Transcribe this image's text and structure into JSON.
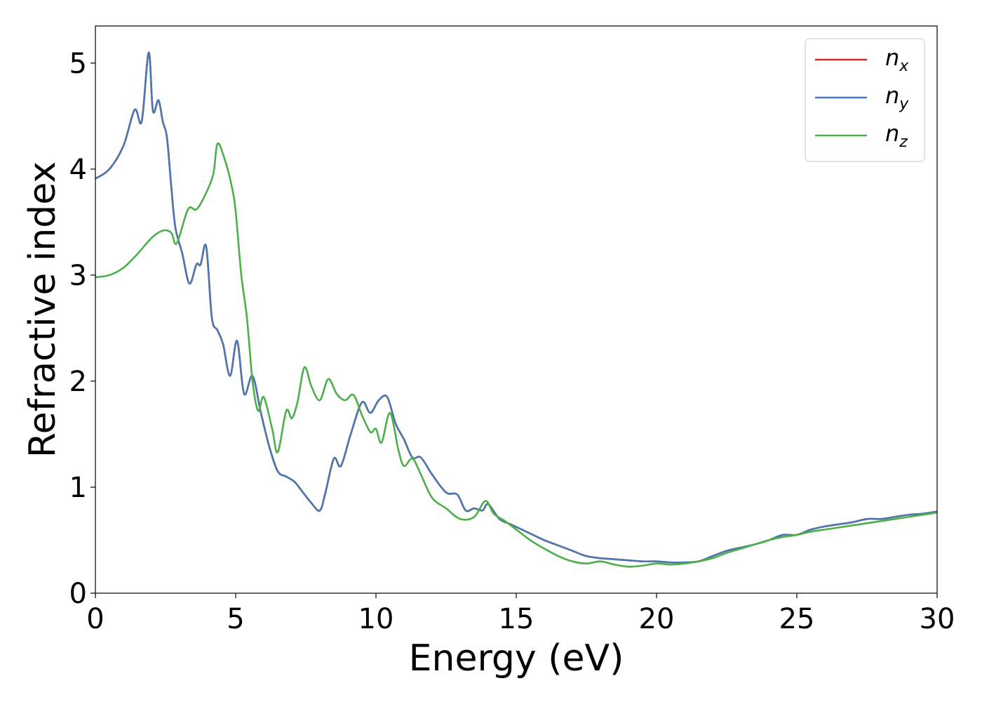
{
  "chart_data": {
    "type": "line",
    "xlabel": "Energy (eV)",
    "ylabel": "Refractive index",
    "xlim": [
      0,
      30
    ],
    "ylim": [
      0,
      5.35
    ],
    "xticks": [
      0,
      5,
      10,
      15,
      20,
      25,
      30
    ],
    "yticks": [
      0,
      1,
      2,
      3,
      4,
      5
    ],
    "grid": false,
    "legend_position": "top-right",
    "series": [
      {
        "name": "n_x",
        "label_base": "n",
        "label_sub": "x",
        "color": "#d62728",
        "x": [
          0,
          0.5,
          1,
          1.4,
          1.65,
          1.9,
          2.05,
          2.25,
          2.4,
          2.55,
          2.7,
          2.85,
          3.1,
          3.35,
          3.6,
          3.75,
          3.95,
          4.15,
          4.35,
          4.55,
          4.8,
          5.05,
          5.3,
          5.6,
          5.9,
          6.2,
          6.5,
          6.8,
          7.1,
          7.4,
          7.7,
          8.0,
          8.2,
          8.5,
          8.75,
          9.1,
          9.5,
          9.8,
          10.1,
          10.4,
          10.7,
          11.0,
          11.3,
          11.6,
          12.0,
          12.5,
          12.9,
          13.2,
          13.5,
          13.8,
          14.0,
          14.4,
          14.8,
          15.2,
          15.6,
          16.0,
          16.5,
          17.0,
          17.5,
          18.0,
          18.5,
          19.0,
          19.5,
          20.0,
          20.5,
          21.0,
          21.5,
          22.0,
          22.5,
          23.0,
          23.5,
          24.0,
          24.5,
          25.0,
          25.5,
          26.0,
          26.5,
          27.0,
          27.5,
          28.0,
          28.5,
          29.0,
          29.5,
          30.0
        ],
        "values": [
          3.91,
          4.0,
          4.22,
          4.56,
          4.45,
          5.1,
          4.55,
          4.65,
          4.45,
          4.3,
          3.85,
          3.45,
          3.2,
          2.92,
          3.1,
          3.1,
          3.27,
          2.6,
          2.48,
          2.35,
          2.05,
          2.38,
          1.88,
          2.05,
          1.7,
          1.38,
          1.15,
          1.1,
          1.05,
          0.95,
          0.85,
          0.78,
          0.95,
          1.27,
          1.2,
          1.5,
          1.8,
          1.7,
          1.82,
          1.85,
          1.6,
          1.45,
          1.28,
          1.28,
          1.12,
          0.95,
          0.93,
          0.78,
          0.8,
          0.78,
          0.84,
          0.7,
          0.65,
          0.6,
          0.55,
          0.5,
          0.45,
          0.4,
          0.35,
          0.33,
          0.32,
          0.31,
          0.3,
          0.3,
          0.29,
          0.29,
          0.3,
          0.35,
          0.4,
          0.43,
          0.46,
          0.5,
          0.55,
          0.55,
          0.6,
          0.63,
          0.65,
          0.67,
          0.7,
          0.7,
          0.72,
          0.74,
          0.75,
          0.77
        ]
      },
      {
        "name": "n_y",
        "label_base": "n",
        "label_sub": "y",
        "color": "#4a78b0",
        "x": [
          0,
          0.5,
          1,
          1.4,
          1.65,
          1.9,
          2.05,
          2.25,
          2.4,
          2.55,
          2.7,
          2.85,
          3.1,
          3.35,
          3.6,
          3.75,
          3.95,
          4.15,
          4.35,
          4.55,
          4.8,
          5.05,
          5.3,
          5.6,
          5.9,
          6.2,
          6.5,
          6.8,
          7.1,
          7.4,
          7.7,
          8.0,
          8.2,
          8.5,
          8.75,
          9.1,
          9.5,
          9.8,
          10.1,
          10.4,
          10.7,
          11.0,
          11.3,
          11.6,
          12.0,
          12.5,
          12.9,
          13.2,
          13.5,
          13.8,
          14.0,
          14.4,
          14.8,
          15.2,
          15.6,
          16.0,
          16.5,
          17.0,
          17.5,
          18.0,
          18.5,
          19.0,
          19.5,
          20.0,
          20.5,
          21.0,
          21.5,
          22.0,
          22.5,
          23.0,
          23.5,
          24.0,
          24.5,
          25.0,
          25.5,
          26.0,
          26.5,
          27.0,
          27.5,
          28.0,
          28.5,
          29.0,
          29.5,
          30.0
        ],
        "values": [
          3.91,
          4.0,
          4.22,
          4.56,
          4.45,
          5.1,
          4.55,
          4.65,
          4.45,
          4.3,
          3.85,
          3.45,
          3.2,
          2.92,
          3.1,
          3.1,
          3.27,
          2.6,
          2.48,
          2.35,
          2.05,
          2.38,
          1.88,
          2.05,
          1.7,
          1.38,
          1.15,
          1.1,
          1.05,
          0.95,
          0.85,
          0.78,
          0.95,
          1.27,
          1.2,
          1.5,
          1.8,
          1.7,
          1.82,
          1.85,
          1.6,
          1.45,
          1.28,
          1.28,
          1.12,
          0.95,
          0.93,
          0.78,
          0.8,
          0.78,
          0.84,
          0.7,
          0.65,
          0.6,
          0.55,
          0.5,
          0.45,
          0.4,
          0.35,
          0.33,
          0.32,
          0.31,
          0.3,
          0.3,
          0.29,
          0.29,
          0.3,
          0.35,
          0.4,
          0.43,
          0.46,
          0.5,
          0.55,
          0.55,
          0.6,
          0.63,
          0.65,
          0.67,
          0.7,
          0.7,
          0.72,
          0.74,
          0.75,
          0.77
        ]
      },
      {
        "name": "n_z",
        "label_base": "n",
        "label_sub": "z",
        "color": "#4daf4a",
        "x": [
          0,
          0.5,
          1,
          1.5,
          2.0,
          2.4,
          2.7,
          2.9,
          3.3,
          3.6,
          3.9,
          4.2,
          4.35,
          4.6,
          4.85,
          5.0,
          5.2,
          5.4,
          5.6,
          5.8,
          6.0,
          6.3,
          6.5,
          6.8,
          7.0,
          7.2,
          7.45,
          7.7,
          8.0,
          8.3,
          8.6,
          8.9,
          9.2,
          9.5,
          9.8,
          10.0,
          10.2,
          10.5,
          10.8,
          11.0,
          11.3,
          11.6,
          12.0,
          12.5,
          13.0,
          13.5,
          13.9,
          14.2,
          14.6,
          15.0,
          15.5,
          16.0,
          16.5,
          17.0,
          17.5,
          18.0,
          18.5,
          19.0,
          19.5,
          20.0,
          20.5,
          21.0,
          21.5,
          22.0,
          22.5,
          23.0,
          23.5,
          24.0,
          24.5,
          25.0,
          25.5,
          26.0,
          26.5,
          27.0,
          27.5,
          28.0,
          28.5,
          29.0,
          29.5,
          30.0
        ],
        "values": [
          2.98,
          3.0,
          3.07,
          3.2,
          3.35,
          3.42,
          3.4,
          3.3,
          3.62,
          3.62,
          3.75,
          3.95,
          4.24,
          4.1,
          3.85,
          3.6,
          3.0,
          2.6,
          2.0,
          1.72,
          1.85,
          1.55,
          1.33,
          1.72,
          1.65,
          1.8,
          2.13,
          1.95,
          1.82,
          2.02,
          1.88,
          1.82,
          1.87,
          1.68,
          1.52,
          1.55,
          1.42,
          1.7,
          1.35,
          1.2,
          1.27,
          1.12,
          0.9,
          0.8,
          0.7,
          0.72,
          0.87,
          0.75,
          0.68,
          0.6,
          0.5,
          0.42,
          0.35,
          0.3,
          0.28,
          0.3,
          0.27,
          0.25,
          0.26,
          0.28,
          0.27,
          0.28,
          0.3,
          0.33,
          0.38,
          0.42,
          0.46,
          0.5,
          0.53,
          0.55,
          0.58,
          0.6,
          0.62,
          0.64,
          0.66,
          0.68,
          0.7,
          0.72,
          0.74,
          0.76
        ]
      }
    ]
  }
}
